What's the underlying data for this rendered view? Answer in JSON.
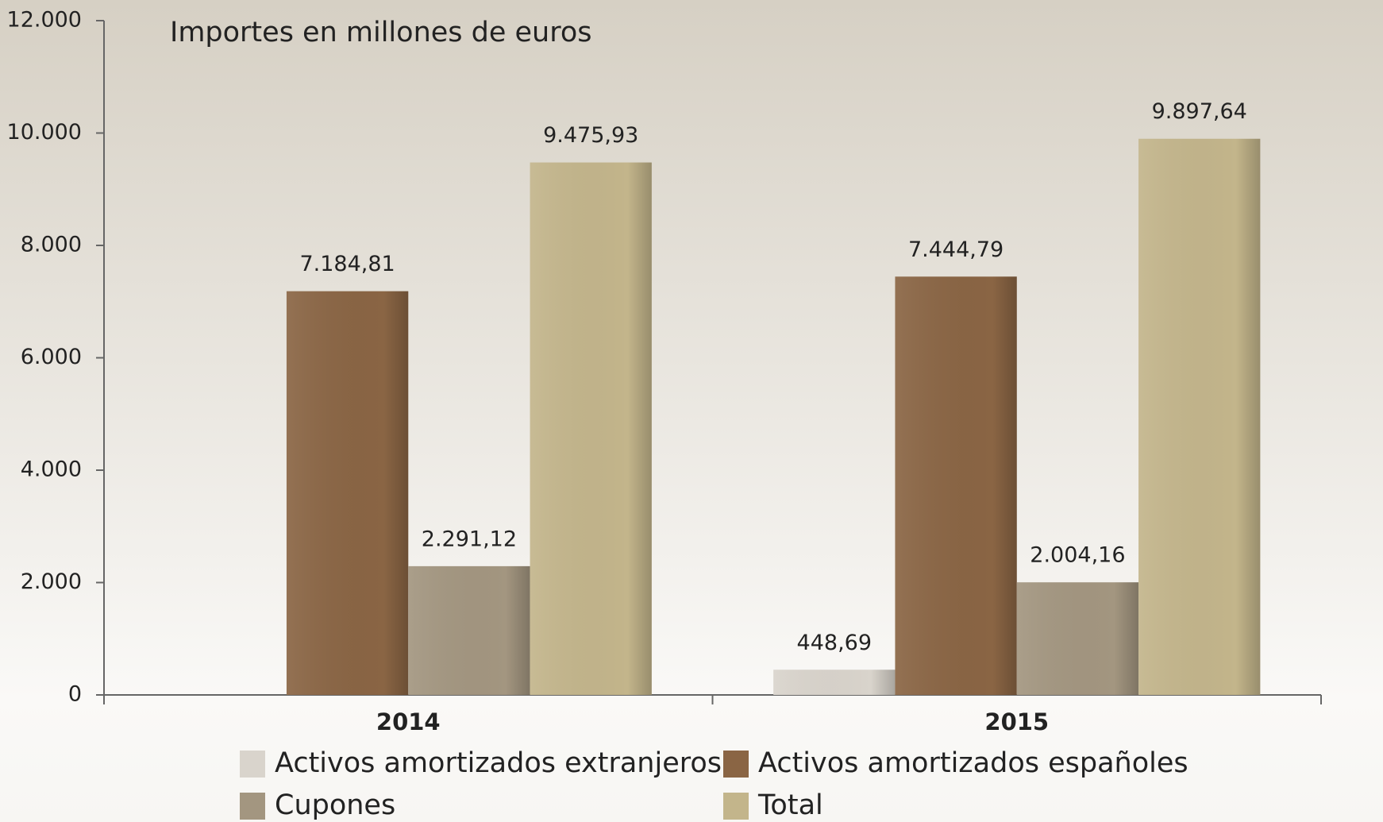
{
  "chart_data": {
    "type": "bar",
    "subtitle": "Importes en millones de euros",
    "categories": [
      "2014",
      "2015"
    ],
    "series": [
      {
        "name": "Activos amortizados extranjeros",
        "color": "#d9d4cc",
        "values": [
          null,
          448.69
        ],
        "value_labels": [
          null,
          "448,69"
        ]
      },
      {
        "name": "Activos amortizados españoles",
        "color": "#8a6544",
        "values": [
          7184.81,
          7444.79
        ],
        "value_labels": [
          "7.184,81",
          "7.444,79"
        ]
      },
      {
        "name": "Cupones",
        "color": "#a39680",
        "values": [
          2291.12,
          2004.16
        ],
        "value_labels": [
          "2.291,12",
          "2.004,16"
        ]
      },
      {
        "name": "Total",
        "color": "#c3b58b",
        "values": [
          9475.93,
          9897.64
        ],
        "value_labels": [
          "9.475,93",
          "9.897,64"
        ]
      }
    ],
    "ylim": [
      0,
      12000
    ],
    "yticks": [
      0,
      {
        "value": 2000,
        "label": "2.000"
      },
      {
        "value": 4000,
        "label": "4.000"
      },
      {
        "value": 6000,
        "label": "6.000"
      },
      {
        "value": 8000,
        "label": "8.000"
      },
      {
        "value": 10000,
        "label": "10.000"
      },
      {
        "value": 12000,
        "label": "12.000"
      }
    ],
    "grid": false
  }
}
